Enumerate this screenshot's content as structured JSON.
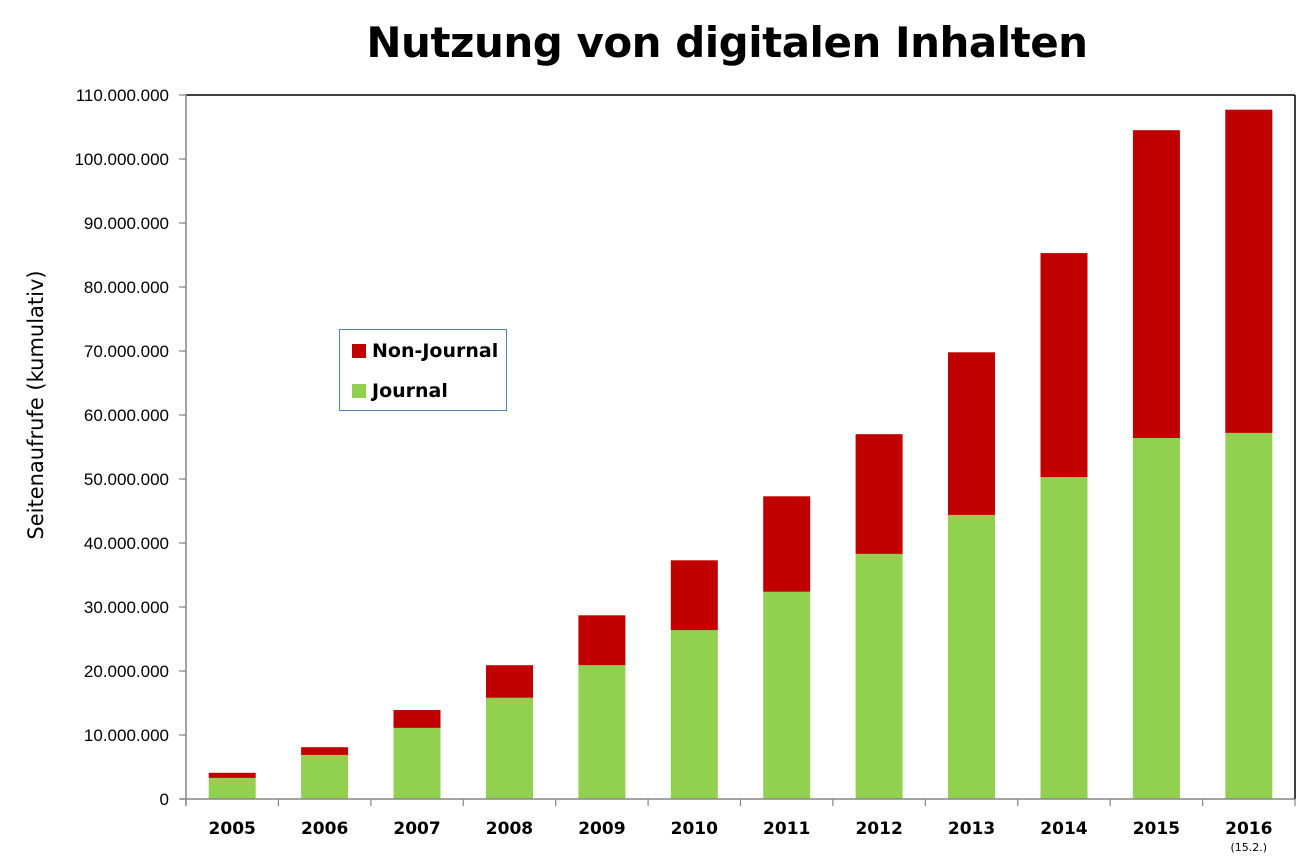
{
  "chart_data": {
    "type": "bar",
    "stacked": true,
    "title": "Nutzung von digitalen Inhalten",
    "xlabel": "",
    "ylabel": "Seitenaufrufe (kumulativ)",
    "ylim": [
      0,
      110000000
    ],
    "ytick_step": 10000000,
    "ytick_labels": [
      "0",
      "10.000.000",
      "20.000.000",
      "30.000.000",
      "40.000.000",
      "50.000.000",
      "60.000.000",
      "70.000.000",
      "80.000.000",
      "90.000.000",
      "100.000.000",
      "110.000.000"
    ],
    "grid": false,
    "categories": [
      "2005",
      "2006",
      "2007",
      "2008",
      "2009",
      "2010",
      "2011",
      "2012",
      "2013",
      "2014",
      "2015",
      "2016"
    ],
    "category_notes": [
      "",
      "",
      "",
      "",
      "",
      "",
      "",
      "",
      "",
      "",
      "",
      "(15.2.)"
    ],
    "series": [
      {
        "name": "Journal",
        "color": "#92d050",
        "values": [
          3300000,
          6900000,
          11100000,
          15800000,
          20900000,
          26400000,
          32400000,
          38300000,
          44400000,
          50300000,
          56400000,
          57200000
        ]
      },
      {
        "name": "Non-Journal",
        "color": "#c00000",
        "values": [
          800000,
          1200000,
          2800000,
          5100000,
          7800000,
          10900000,
          14900000,
          18700000,
          25400000,
          35000000,
          48100000,
          50500000
        ]
      }
    ],
    "legend": {
      "placement": "upper-left-inside",
      "entries": [
        {
          "label": "Non-Journal",
          "color": "#c00000"
        },
        {
          "label": "Journal",
          "color": "#92d050"
        }
      ]
    }
  }
}
